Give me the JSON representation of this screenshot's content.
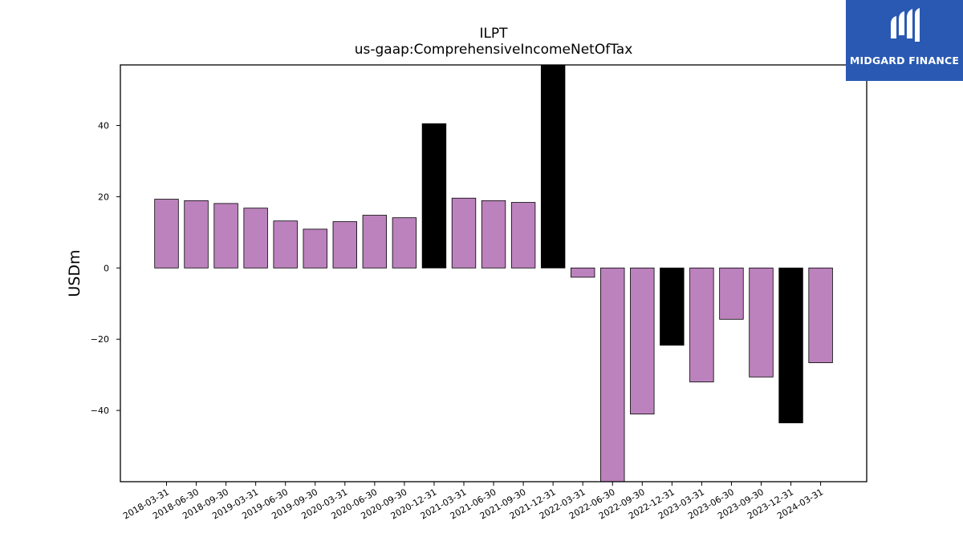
{
  "brand": {
    "name": "MIDGARD FINANCE",
    "bg_color": "#2a59b3",
    "icon": "midgard-logo-mark"
  },
  "colors": {
    "positive": "#bc82bd",
    "highlight": "#000000",
    "edge": "#000000"
  },
  "chart_data": {
    "type": "bar",
    "title": "ILPT",
    "subtitle": "us-gaap:ComprehensiveIncomeNetOfTax",
    "xlabel": "",
    "ylabel": "USDm",
    "ylim": [
      -60,
      57
    ],
    "yticks": [
      -40,
      -20,
      0,
      20,
      40
    ],
    "grid": false,
    "legend": "none",
    "categories": [
      "2018-03-31",
      "2018-06-30",
      "2018-09-30",
      "2019-03-31",
      "2019-06-30",
      "2019-09-30",
      "2020-03-31",
      "2020-06-30",
      "2020-09-30",
      "2020-12-31",
      "2021-03-31",
      "2021-06-30",
      "2021-09-30",
      "2021-12-31",
      "2022-03-31",
      "2022-06-30",
      "2022-09-30",
      "2022-12-31",
      "2023-03-31",
      "2023-06-30",
      "2023-09-30",
      "2023-12-31",
      "2024-03-31"
    ],
    "values": [
      19.3,
      18.9,
      18.1,
      16.8,
      13.2,
      10.9,
      13.0,
      14.8,
      14.1,
      40.5,
      19.6,
      18.9,
      18.4,
      57.0,
      -2.6,
      -60.0,
      -41.0,
      -21.7,
      -32.0,
      -14.4,
      -30.6,
      -43.5,
      -26.6
    ],
    "highlight": [
      false,
      false,
      false,
      false,
      false,
      false,
      false,
      false,
      false,
      true,
      false,
      false,
      false,
      true,
      false,
      false,
      false,
      true,
      false,
      false,
      false,
      true,
      false
    ]
  }
}
